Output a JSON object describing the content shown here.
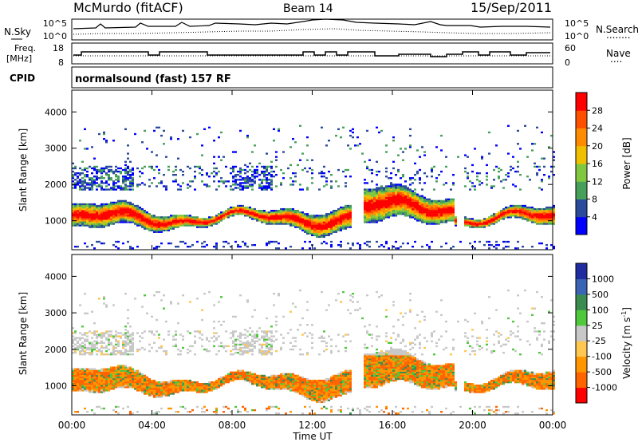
{
  "header": {
    "station": "McMurdo (fitACF)",
    "beam": "Beam 14",
    "date": "15/Sep/2011"
  },
  "noise_panel": {
    "left_label": "N.Sky",
    "left_ticks": [
      "10^5",
      "10^0"
    ],
    "right_ticks": [
      "10^5",
      "10^0"
    ],
    "right_label": "N.Search",
    "right_label_line": "........"
  },
  "freq_panel": {
    "left_label_line1": "Freq.",
    "left_label_line2": "[MHz]",
    "left_ticks": [
      "18",
      "8"
    ],
    "right_ticks": [
      "60",
      "0"
    ],
    "right_label": "Nave",
    "right_label_line": "...."
  },
  "cpid": {
    "label": "CPID",
    "value": "normalsound (fast) 157 RF"
  },
  "colors": {
    "power_scale": [
      "#0000ff",
      "#2a4a9c",
      "#46a05a",
      "#80c840",
      "#f0c000",
      "#ff8c00",
      "#ff5000",
      "#ff0000"
    ],
    "velocity_scale": [
      "#ff0000",
      "#ff6400",
      "#ff9600",
      "#ffc850",
      "#c8c8c8",
      "#50c83c",
      "#3c8c50",
      "#3c64b4",
      "#1e2ca0"
    ]
  },
  "chart_data": [
    {
      "type": "heatmap",
      "name": "power",
      "xlabel": "",
      "ylabel": "Slant Range [km]",
      "y_ticks": [
        1000,
        2000,
        3000,
        4000
      ],
      "ylim": [
        200,
        4600
      ],
      "colorbar_label": "Power [dB]",
      "colorbar_ticks": [
        4,
        8,
        12,
        16,
        20,
        24,
        28
      ],
      "colorbar_range": [
        0,
        32
      ],
      "grid": false
    },
    {
      "type": "heatmap",
      "name": "velocity",
      "xlabel": "Time UT",
      "ylabel": "Slant Range [km]",
      "y_ticks": [
        1000,
        2000,
        3000,
        4000
      ],
      "ylim": [
        200,
        4600
      ],
      "colorbar_label": "Velocity [m s",
      "colorbar_label_sup": "-1",
      "colorbar_label_close": "]",
      "colorbar_ticks": [
        "-1000",
        "-500",
        "-100",
        "-25",
        "25",
        "100",
        "500",
        "1000"
      ],
      "x_ticks": [
        "00:00",
        "04:00",
        "08:00",
        "12:00",
        "16:00",
        "20:00",
        "00:00"
      ],
      "x_range_hours": [
        0,
        24
      ],
      "grid": false
    }
  ]
}
